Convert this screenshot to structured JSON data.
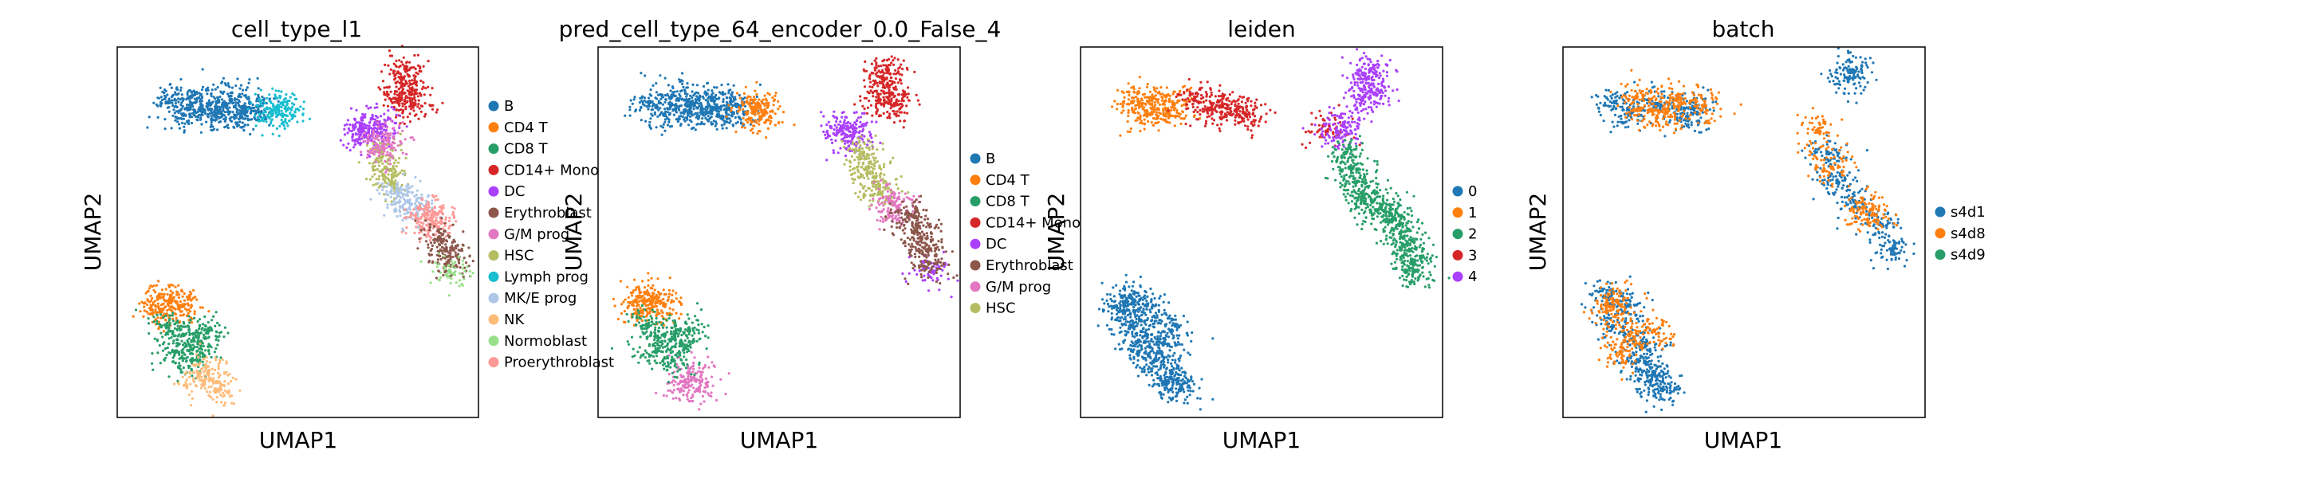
{
  "chart_data": [
    {
      "type": "scatter",
      "title": "cell_type_l1",
      "xlabel": "UMAP1",
      "ylabel": "UMAP2",
      "legend": {
        "placement": "right",
        "entries": [
          {
            "label": "B",
            "color": "#1f77b4"
          },
          {
            "label": "CD4 T",
            "color": "#ff7f0e"
          },
          {
            "label": "CD8 T",
            "color": "#279e68"
          },
          {
            "label": "CD14+ Mono",
            "color": "#d62728"
          },
          {
            "label": "DC",
            "color": "#aa40fc"
          },
          {
            "label": "Erythroblast",
            "color": "#8c564b"
          },
          {
            "label": "G/M prog",
            "color": "#e377c2"
          },
          {
            "label": "HSC",
            "color": "#b5bd61"
          },
          {
            "label": "Lymph prog",
            "color": "#17becf"
          },
          {
            "label": "MK/E prog",
            "color": "#aec7e8"
          },
          {
            "label": "NK",
            "color": "#ffbb78"
          },
          {
            "label": "Normoblast",
            "color": "#98df8a"
          },
          {
            "label": "Proerythroblast",
            "color": "#ff9896"
          }
        ]
      },
      "clusters": [
        {
          "label": "B",
          "points": [
            [
              -2.5,
              8.4
            ],
            [
              -1.5,
              8.6
            ],
            [
              -0.5,
              8.3
            ],
            [
              0.5,
              8.5
            ],
            [
              1.3,
              8.1
            ],
            [
              0.0,
              7.9
            ],
            [
              -1.8,
              7.8
            ],
            [
              1.8,
              8.2
            ],
            [
              -0.8,
              8.0
            ],
            [
              1.0,
              7.7
            ]
          ]
        },
        {
          "label": "Lymph prog",
          "points": [
            [
              2.5,
              8.0
            ],
            [
              3.0,
              7.8
            ],
            [
              2.8,
              8.2
            ]
          ]
        },
        {
          "label": "CD14+ Mono",
          "points": [
            [
              8.8,
              9.5
            ],
            [
              9.2,
              8.8
            ],
            [
              8.6,
              8.5
            ],
            [
              9.0,
              9.9
            ],
            [
              9.4,
              8.3
            ]
          ]
        },
        {
          "label": "DC",
          "points": [
            [
              6.8,
              7.2
            ],
            [
              7.4,
              7.0
            ],
            [
              7.0,
              6.8
            ],
            [
              7.7,
              7.3
            ]
          ]
        },
        {
          "label": "HSC",
          "points": [
            [
              7.8,
              6.0
            ],
            [
              8.0,
              5.3
            ],
            [
              8.3,
              4.6
            ]
          ]
        },
        {
          "label": "G/M prog",
          "points": [
            [
              8.1,
              6.6
            ],
            [
              7.9,
              6.2
            ]
          ]
        },
        {
          "label": "MK/E prog",
          "points": [
            [
              8.6,
              4.1
            ],
            [
              9.1,
              3.7
            ],
            [
              9.5,
              3.4
            ]
          ]
        },
        {
          "label": "Proerythroblast",
          "points": [
            [
              10.0,
              3.1
            ],
            [
              10.4,
              2.6
            ],
            [
              10.2,
              2.9
            ]
          ]
        },
        {
          "label": "Erythroblast",
          "points": [
            [
              10.6,
              2.0
            ],
            [
              10.9,
              1.4
            ],
            [
              11.0,
              0.8
            ]
          ]
        },
        {
          "label": "Normoblast",
          "points": [
            [
              11.1,
              0.4
            ]
          ]
        },
        {
          "label": "CD4 T",
          "points": [
            [
              -3.0,
              -0.8
            ],
            [
              -2.4,
              -1.0
            ],
            [
              -1.8,
              -1.2
            ],
            [
              -2.9,
              -1.5
            ]
          ]
        },
        {
          "label": "CD8 T",
          "points": [
            [
              -2.6,
              -2.2
            ],
            [
              -1.8,
              -2.6
            ],
            [
              -1.0,
              -3.0
            ],
            [
              -2.2,
              -3.4
            ],
            [
              -1.4,
              -3.8
            ],
            [
              -0.6,
              -2.4
            ]
          ]
        },
        {
          "label": "NK",
          "points": [
            [
              -0.8,
              -4.8
            ],
            [
              -0.2,
              -5.2
            ],
            [
              -0.6,
              -4.4
            ]
          ]
        }
      ]
    },
    {
      "type": "scatter",
      "title": "pred_cell_type_64_encoder_0.0_False_4",
      "xlabel": "UMAP1",
      "ylabel": "UMAP2",
      "legend": {
        "placement": "right",
        "entries": [
          {
            "label": "B",
            "color": "#1f77b4"
          },
          {
            "label": "CD4 T",
            "color": "#ff7f0e"
          },
          {
            "label": "CD8 T",
            "color": "#279e68"
          },
          {
            "label": "CD14+ Mono",
            "color": "#d62728"
          },
          {
            "label": "DC",
            "color": "#aa40fc"
          },
          {
            "label": "Erythroblast",
            "color": "#8c564b"
          },
          {
            "label": "G/M prog",
            "color": "#e377c2"
          },
          {
            "label": "HSC",
            "color": "#b5bd61"
          }
        ]
      },
      "clusters": [
        {
          "label": "B",
          "points": [
            [
              -2.5,
              8.4
            ],
            [
              -1.5,
              8.6
            ],
            [
              -0.5,
              8.3
            ],
            [
              0.5,
              8.5
            ],
            [
              1.3,
              8.1
            ],
            [
              0.0,
              7.9
            ],
            [
              -1.8,
              7.8
            ],
            [
              1.8,
              8.2
            ],
            [
              -0.8,
              8.0
            ],
            [
              1.0,
              7.7
            ]
          ]
        },
        {
          "label": "CD4 T",
          "points": [
            [
              2.5,
              8.0
            ],
            [
              3.0,
              7.8
            ],
            [
              2.8,
              8.2
            ],
            [
              -3.0,
              -0.8
            ],
            [
              -2.4,
              -1.0
            ],
            [
              -1.8,
              -1.2
            ],
            [
              -2.9,
              -1.5
            ]
          ]
        },
        {
          "label": "CD14+ Mono",
          "points": [
            [
              8.8,
              9.5
            ],
            [
              9.2,
              8.8
            ],
            [
              8.6,
              8.5
            ],
            [
              9.0,
              9.9
            ],
            [
              9.4,
              8.3
            ]
          ]
        },
        {
          "label": "DC",
          "points": [
            [
              6.8,
              7.2
            ],
            [
              7.4,
              7.0
            ],
            [
              7.0,
              6.8
            ],
            [
              11.1,
              0.4
            ]
          ]
        },
        {
          "label": "HSC",
          "points": [
            [
              7.8,
              6.0
            ],
            [
              8.0,
              5.3
            ],
            [
              8.3,
              4.6
            ],
            [
              8.6,
              4.1
            ]
          ]
        },
        {
          "label": "G/M prog",
          "points": [
            [
              9.1,
              3.7
            ],
            [
              9.5,
              3.4
            ],
            [
              -0.8,
              -4.8
            ],
            [
              -0.2,
              -5.2
            ],
            [
              -0.6,
              -4.4
            ]
          ]
        },
        {
          "label": "Erythroblast",
          "points": [
            [
              10.0,
              3.1
            ],
            [
              10.4,
              2.6
            ],
            [
              10.6,
              2.0
            ],
            [
              10.9,
              1.4
            ],
            [
              11.0,
              0.8
            ]
          ]
        },
        {
          "label": "CD8 T",
          "points": [
            [
              -2.6,
              -2.2
            ],
            [
              -1.8,
              -2.6
            ],
            [
              -1.0,
              -3.0
            ],
            [
              -2.2,
              -3.4
            ],
            [
              -1.4,
              -3.8
            ],
            [
              -0.6,
              -2.4
            ]
          ]
        }
      ]
    },
    {
      "type": "scatter",
      "title": "leiden",
      "xlabel": "UMAP1",
      "ylabel": "UMAP2",
      "legend": {
        "placement": "right",
        "entries": [
          {
            "label": "0",
            "color": "#1f77b4"
          },
          {
            "label": "1",
            "color": "#ff7f0e"
          },
          {
            "label": "2",
            "color": "#279e68"
          },
          {
            "label": "3",
            "color": "#d62728"
          },
          {
            "label": "4",
            "color": "#aa40fc"
          }
        ]
      },
      "clusters": [
        {
          "label": "1",
          "points": [
            [
              -2.5,
              8.4
            ],
            [
              -1.5,
              8.6
            ],
            [
              -0.5,
              8.3
            ],
            [
              -1.8,
              7.8
            ],
            [
              -0.8,
              8.0
            ]
          ]
        },
        {
          "label": "3",
          "points": [
            [
              0.5,
              8.5
            ],
            [
              1.3,
              8.1
            ],
            [
              1.8,
              8.2
            ],
            [
              2.5,
              8.0
            ],
            [
              3.0,
              7.8
            ],
            [
              6.9,
              7.0
            ]
          ]
        },
        {
          "label": "4",
          "points": [
            [
              8.8,
              9.5
            ],
            [
              9.2,
              8.8
            ],
            [
              8.6,
              8.5
            ],
            [
              9.0,
              9.9
            ],
            [
              7.4,
              7.0
            ],
            [
              7.7,
              7.3
            ]
          ]
        },
        {
          "label": "2",
          "points": [
            [
              7.8,
              6.0
            ],
            [
              8.0,
              5.3
            ],
            [
              8.3,
              4.6
            ],
            [
              8.6,
              4.1
            ],
            [
              9.1,
              3.7
            ],
            [
              9.5,
              3.4
            ],
            [
              10.0,
              3.1
            ],
            [
              10.4,
              2.6
            ],
            [
              10.6,
              2.0
            ],
            [
              10.9,
              1.4
            ],
            [
              11.0,
              0.8
            ],
            [
              11.1,
              0.4
            ]
          ]
        },
        {
          "label": "0",
          "points": [
            [
              -3.0,
              -0.8
            ],
            [
              -2.4,
              -1.0
            ],
            [
              -1.8,
              -1.2
            ],
            [
              -2.9,
              -1.5
            ],
            [
              -2.6,
              -2.2
            ],
            [
              -1.8,
              -2.6
            ],
            [
              -1.0,
              -3.0
            ],
            [
              -2.2,
              -3.4
            ],
            [
              -1.4,
              -3.8
            ],
            [
              -0.6,
              -2.4
            ],
            [
              -0.8,
              -4.8
            ],
            [
              -0.2,
              -5.2
            ],
            [
              -0.6,
              -4.4
            ]
          ]
        }
      ]
    },
    {
      "type": "scatter",
      "title": "batch",
      "xlabel": "UMAP1",
      "ylabel": "UMAP2",
      "legend": {
        "placement": "right",
        "entries": [
          {
            "label": "s4d1",
            "color": "#1f77b4"
          },
          {
            "label": "s4d8",
            "color": "#ff7f0e"
          },
          {
            "label": "s4d9",
            "color": "#279e68"
          }
        ]
      },
      "clusters": [
        {
          "label": "s4d1",
          "points": [
            [
              -2.5,
              8.4
            ],
            [
              -0.5,
              8.3
            ],
            [
              1.3,
              8.1
            ],
            [
              -1.8,
              7.8
            ],
            [
              1.0,
              7.7
            ],
            [
              8.8,
              9.5
            ],
            [
              9.0,
              9.9
            ],
            [
              7.8,
              6.0
            ],
            [
              8.3,
              4.6
            ],
            [
              9.1,
              3.7
            ],
            [
              10.4,
              2.6
            ],
            [
              10.9,
              1.4
            ],
            [
              -3.0,
              -0.8
            ],
            [
              -1.8,
              -1.2
            ],
            [
              -2.6,
              -2.2
            ],
            [
              -1.0,
              -3.0
            ],
            [
              -1.4,
              -3.8
            ],
            [
              -0.8,
              -4.8
            ],
            [
              -0.2,
              -5.2
            ],
            [
              -0.6,
              -4.4
            ]
          ]
        },
        {
          "label": "s4d8",
          "points": [
            [
              -1.5,
              8.6
            ],
            [
              0.5,
              8.5
            ],
            [
              0.0,
              7.9
            ],
            [
              -0.8,
              8.0
            ],
            [
              1.8,
              8.2
            ],
            [
              7.4,
              7.0
            ],
            [
              8.0,
              5.3
            ],
            [
              9.5,
              3.4
            ],
            [
              10.0,
              3.1
            ],
            [
              -2.4,
              -1.0
            ],
            [
              -2.9,
              -1.5
            ],
            [
              -1.8,
              -2.6
            ],
            [
              -2.2,
              -3.4
            ],
            [
              -0.6,
              -2.4
            ]
          ]
        }
      ]
    }
  ]
}
